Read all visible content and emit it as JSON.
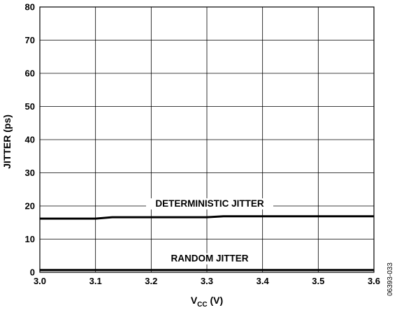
{
  "chart_data": {
    "type": "line",
    "xlabel_main": "V",
    "xlabel_sub": "CC",
    "xlabel_unit": " (V)",
    "ylabel": "JITTER (ps)",
    "xlim": [
      3.0,
      3.6
    ],
    "ylim": [
      0,
      80
    ],
    "x_ticks": [
      "3.0",
      "3.1",
      "3.2",
      "3.3",
      "3.4",
      "3.5",
      "3.6"
    ],
    "y_ticks": [
      "0",
      "10",
      "20",
      "30",
      "40",
      "50",
      "60",
      "70",
      "80"
    ],
    "grid": true,
    "series": [
      {
        "name": "DETERMINISTIC JITTER",
        "x": [
          3.0,
          3.1,
          3.13,
          3.3,
          3.33,
          3.6
        ],
        "y": [
          16.2,
          16.2,
          16.6,
          16.6,
          16.9,
          16.9
        ]
      },
      {
        "name": "RANDOM JITTER",
        "x": [
          3.0,
          3.6
        ],
        "y": [
          0.7,
          0.7
        ]
      }
    ],
    "figure_code": "06393-033"
  }
}
